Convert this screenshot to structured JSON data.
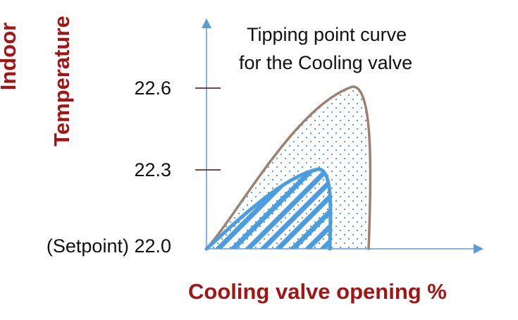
{
  "colors": {
    "axis": "#5b9bd5",
    "outer_curve": "#9b8270",
    "outer_dots": "#4a90d9",
    "inner_curve": "#4a9de0",
    "inner_hatch": "#4a9de0",
    "axis_title": "#a31515",
    "text": "#111111"
  },
  "chart_data": {
    "type": "area",
    "title_lines": [
      "Tipping point curve",
      "for the Cooling valve"
    ],
    "xlabel": "Cooling valve opening %",
    "ylabel_lines": [
      "Indoor",
      "Temperature"
    ],
    "y_ticks": [
      {
        "label": "22.6",
        "value": 22.6
      },
      {
        "label": "22.3",
        "value": 22.3
      },
      {
        "label": "(Setpoint) 22.0",
        "value": 22.0
      }
    ],
    "ylim": [
      22.0,
      22.6
    ],
    "regions": [
      {
        "fill": "dotted",
        "peak_temperature": 22.6
      },
      {
        "fill": "hatched",
        "peak_temperature": 22.3
      }
    ]
  }
}
